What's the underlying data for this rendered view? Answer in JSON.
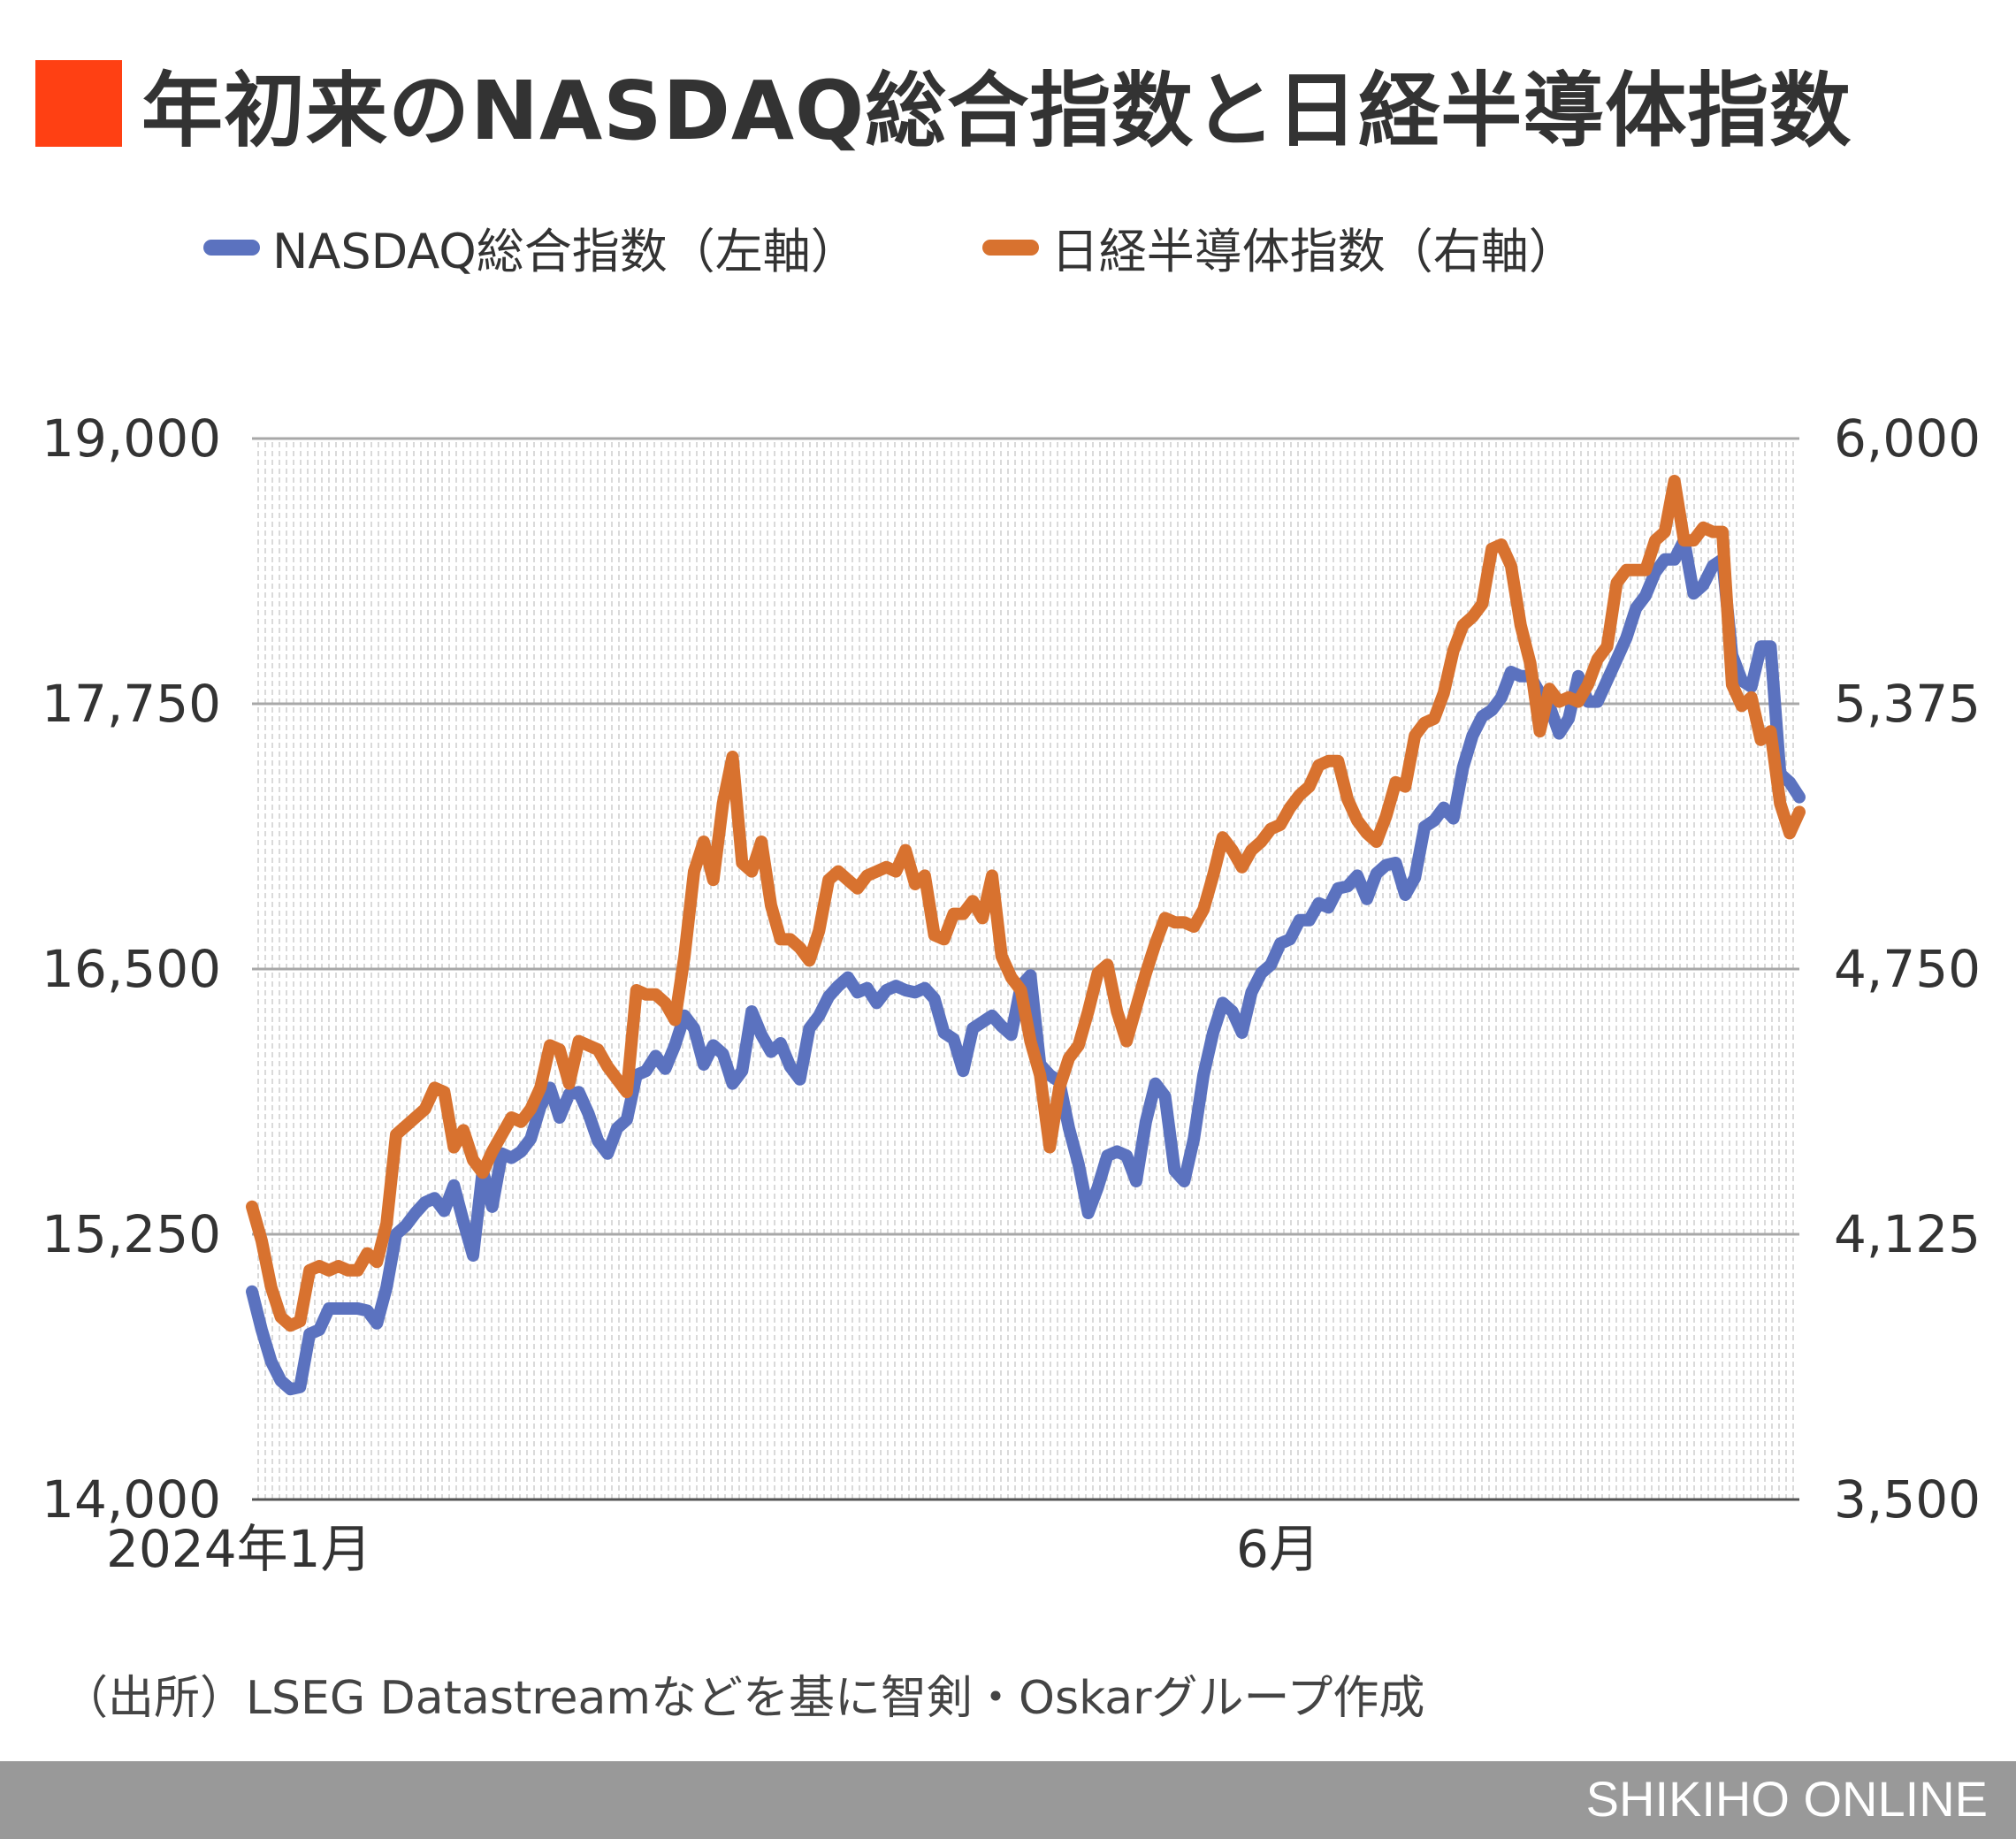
{
  "title": "年初来のNASDAQ総合指数と日経半導体指数",
  "title_marker_color": "#ff4013",
  "legend": [
    {
      "label": "NASDAQ総合指数（左軸）",
      "color": "#5b72bf"
    },
    {
      "label": "日経半導体指数（右軸）",
      "color": "#d8722f"
    }
  ],
  "source": "（出所）LSEG Datastreamなどを基に智剣・Oskarグループ作成",
  "brand": "SHIKIHO ONLINE",
  "chart_data": {
    "type": "line",
    "x_ticks": [
      {
        "index": 0,
        "label": "2024年1月"
      },
      {
        "index": 104,
        "label": "6月"
      }
    ],
    "y_left": {
      "min": 14000,
      "max": 19000,
      "ticks": [
        "19,000",
        "17,750",
        "16,500",
        "15,250",
        "14,000"
      ],
      "tick_values": [
        19000,
        17750,
        16500,
        15250,
        14000
      ]
    },
    "y_right": {
      "min": 3500,
      "max": 6000,
      "ticks": [
        "6,000",
        "5,375",
        "4,750",
        "4,125",
        "3,500"
      ],
      "tick_values": [
        6000,
        5375,
        4750,
        4125,
        3500
      ]
    },
    "grid": true,
    "series": [
      {
        "name": "NASDAQ総合指数（左軸）",
        "axis": "left",
        "color": "#5b72bf",
        "values": [
          14980,
          14800,
          14650,
          14560,
          14520,
          14530,
          14780,
          14800,
          14900,
          14900,
          14900,
          14900,
          14890,
          14830,
          15000,
          15250,
          15290,
          15350,
          15400,
          15420,
          15360,
          15480,
          15310,
          15150,
          15550,
          15380,
          15630,
          15610,
          15640,
          15700,
          15850,
          15940,
          15800,
          15910,
          15920,
          15820,
          15690,
          15630,
          15750,
          15790,
          16000,
          16020,
          16090,
          16030,
          16140,
          16280,
          16220,
          16050,
          16140,
          16100,
          15960,
          16020,
          16300,
          16190,
          16110,
          16150,
          16040,
          15980,
          16220,
          16280,
          16370,
          16420,
          16460,
          16390,
          16410,
          16340,
          16400,
          16420,
          16400,
          16390,
          16410,
          16360,
          16200,
          16170,
          16020,
          16220,
          16250,
          16280,
          16230,
          16190,
          16420,
          16470,
          16050,
          16000,
          15970,
          15750,
          15580,
          15350,
          15470,
          15620,
          15640,
          15620,
          15500,
          15780,
          15960,
          15900,
          15550,
          15500,
          15700,
          16000,
          16200,
          16340,
          16300,
          16200,
          16390,
          16480,
          16520,
          16620,
          16640,
          16730,
          16730,
          16810,
          16790,
          16880,
          16890,
          16940,
          16830,
          16950,
          16990,
          17000,
          16850,
          16930,
          17170,
          17200,
          17260,
          17210,
          17450,
          17600,
          17690,
          17720,
          17780,
          17900,
          17880,
          17880,
          17800,
          17740,
          17610,
          17680,
          17880,
          17760,
          17760,
          17860,
          17960,
          18060,
          18200,
          18260,
          18370,
          18430,
          18430,
          18520,
          18270,
          18310,
          18400,
          18430,
          17980,
          17860,
          17830,
          18020,
          18020,
          17420,
          17380,
          17310
        ]
      },
      {
        "name": "日経半導体指数（右軸）",
        "axis": "right",
        "color": "#d8722f",
        "values": [
          4190,
          4110,
          4000,
          3930,
          3910,
          3920,
          4040,
          4050,
          4040,
          4050,
          4040,
          4040,
          4080,
          4060,
          4150,
          4360,
          4380,
          4400,
          4420,
          4470,
          4460,
          4330,
          4370,
          4300,
          4270,
          4320,
          4360,
          4400,
          4390,
          4420,
          4470,
          4570,
          4560,
          4480,
          4580,
          4570,
          4560,
          4520,
          4490,
          4460,
          4700,
          4690,
          4690,
          4670,
          4630,
          4780,
          4980,
          5050,
          4960,
          5140,
          5250,
          5000,
          4980,
          5050,
          4900,
          4820,
          4820,
          4800,
          4770,
          4840,
          4960,
          4980,
          4960,
          4940,
          4970,
          4980,
          4990,
          4980,
          5030,
          4950,
          4970,
          4830,
          4820,
          4880,
          4880,
          4910,
          4870,
          4970,
          4780,
          4730,
          4700,
          4580,
          4500,
          4330,
          4470,
          4540,
          4570,
          4650,
          4740,
          4760,
          4650,
          4580,
          4660,
          4740,
          4810,
          4870,
          4860,
          4860,
          4850,
          4890,
          4970,
          5060,
          5030,
          4990,
          5030,
          5050,
          5080,
          5090,
          5130,
          5160,
          5180,
          5230,
          5240,
          5240,
          5150,
          5100,
          5070,
          5050,
          5110,
          5190,
          5180,
          5300,
          5330,
          5340,
          5400,
          5500,
          5560,
          5580,
          5610,
          5740,
          5750,
          5700,
          5560,
          5470,
          5310,
          5410,
          5380,
          5390,
          5380,
          5420,
          5480,
          5510,
          5660,
          5690,
          5690,
          5690,
          5760,
          5780,
          5900,
          5760,
          5760,
          5790,
          5780,
          5780,
          5420,
          5370,
          5390,
          5290,
          5310,
          5140,
          5070,
          5120
        ]
      }
    ]
  }
}
